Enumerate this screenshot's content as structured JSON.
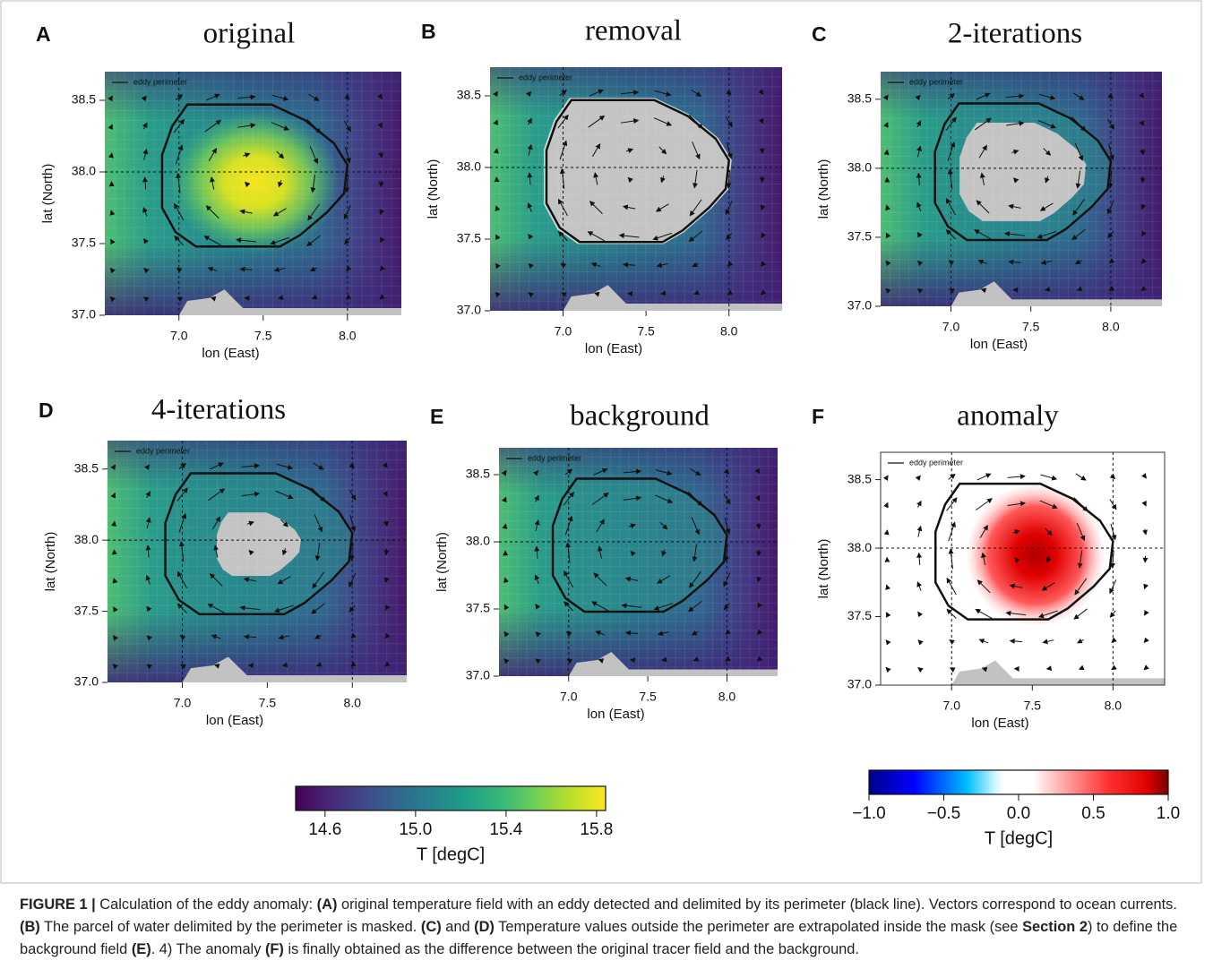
{
  "axes": {
    "xlim": [
      6.56,
      8.32
    ],
    "ylim": [
      37.0,
      38.7
    ],
    "xticks": [
      {
        "value": 7.0,
        "label": "7.0"
      },
      7.5,
      {
        "value": 8.0,
        "label": "8.0"
      }
    ],
    "yticks": [
      {
        "value": 37.0,
        "label": "37.0"
      },
      37.5,
      {
        "value": 38.0,
        "label": "38.0"
      },
      38.5
    ],
    "xlabel": "lon (East)",
    "ylabel": "lat (North)",
    "legend": "eddy perimeter"
  },
  "panels": [
    {
      "letter": "A",
      "title": "original"
    },
    {
      "letter": "B",
      "title": "removal"
    },
    {
      "letter": "C",
      "title": "2-iterations"
    },
    {
      "letter": "D",
      "title": "4-iterations"
    },
    {
      "letter": "E",
      "title": "background"
    },
    {
      "letter": "F",
      "title": "anomaly"
    }
  ],
  "colorbars": [
    {
      "label": "T [degC]",
      "lim": [
        14.47,
        15.84
      ],
      "ticks": [
        14.6,
        {
          "value": 15.0,
          "label": "15.0"
        },
        15.4,
        15.8
      ]
    },
    {
      "label": "T [degC]",
      "lim": [
        -1.0,
        1.0
      ],
      "ticks": [
        {
          "value": -1.0,
          "label": "−1.0"
        },
        {
          "value": -0.5,
          "label": "−0.5"
        },
        {
          "value": 0.0,
          "label": "0.0"
        },
        0.5,
        {
          "value": 1.0,
          "label": "1.0"
        }
      ]
    }
  ],
  "caption": [
    {
      "text": "FIGURE 1 |",
      "bold": true
    },
    {
      "text": " Calculation of the eddy anomaly: ",
      "bold": false
    },
    {
      "text": "(A)",
      "bold": true
    },
    {
      "text": " original temperature field with an eddy detected and delimited by its perimeter (black line). Vectors correspond to ocean currents. ",
      "bold": false
    },
    {
      "text": "(B)",
      "bold": true
    },
    {
      "text": " The parcel of water delimited by the perimeter is masked. ",
      "bold": false
    },
    {
      "text": "(C)",
      "bold": true
    },
    {
      "text": " and ",
      "bold": false
    },
    {
      "text": "(D)",
      "bold": true
    },
    {
      "text": " Temperature values outside the perimeter are extrapolated inside the mask (see ",
      "bold": false
    },
    {
      "text": "Section 2",
      "bold": true
    },
    {
      "text": ") to define the background field ",
      "bold": false
    },
    {
      "text": "(E)",
      "bold": true
    },
    {
      "text": ". 4) The anomaly ",
      "bold": false
    },
    {
      "text": "(F)",
      "bold": true
    },
    {
      "text": " is finally obtained as the difference between the original tracer field and the background.",
      "bold": false
    }
  ]
}
